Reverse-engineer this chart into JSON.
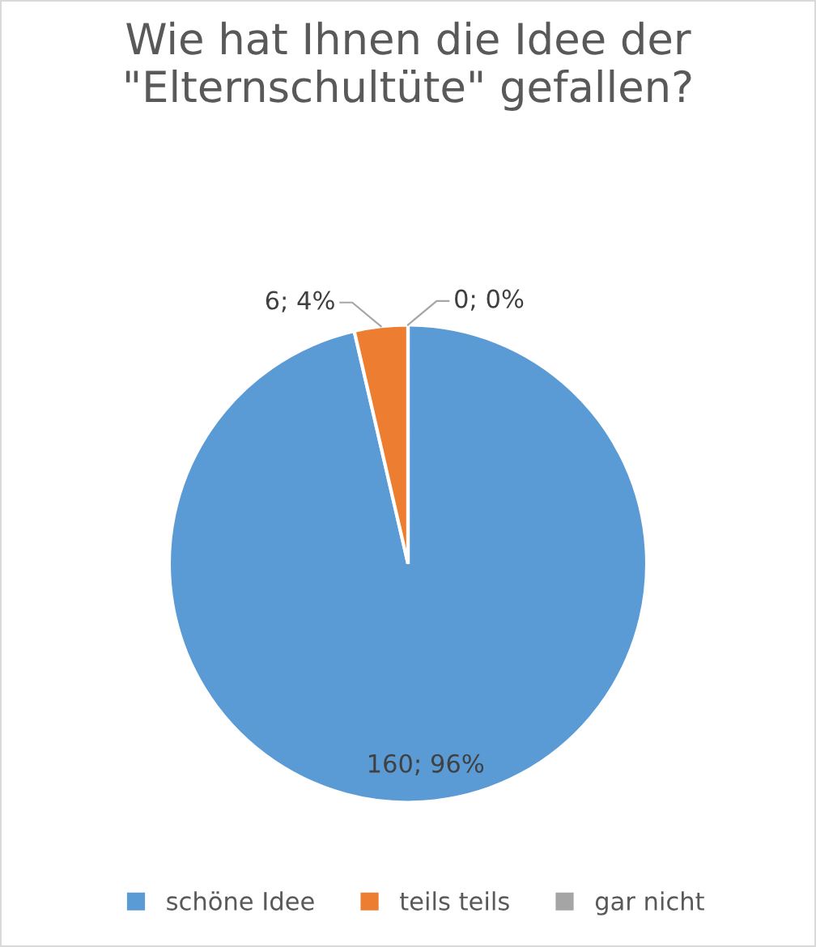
{
  "chart_data": {
    "type": "pie",
    "title": "Wie hat Ihnen die Idee der \"Elternschultüte\" gefallen?",
    "categories": [
      "schöne Idee",
      "teils teils",
      "gar nicht"
    ],
    "values": [
      160,
      6,
      0
    ],
    "colors": [
      "#5b9bd5",
      "#ed7d31",
      "#a5a5a5"
    ],
    "value_labels": [
      "160; 96%",
      "6; 4%",
      "0; 0%"
    ],
    "legend": "bottom"
  }
}
